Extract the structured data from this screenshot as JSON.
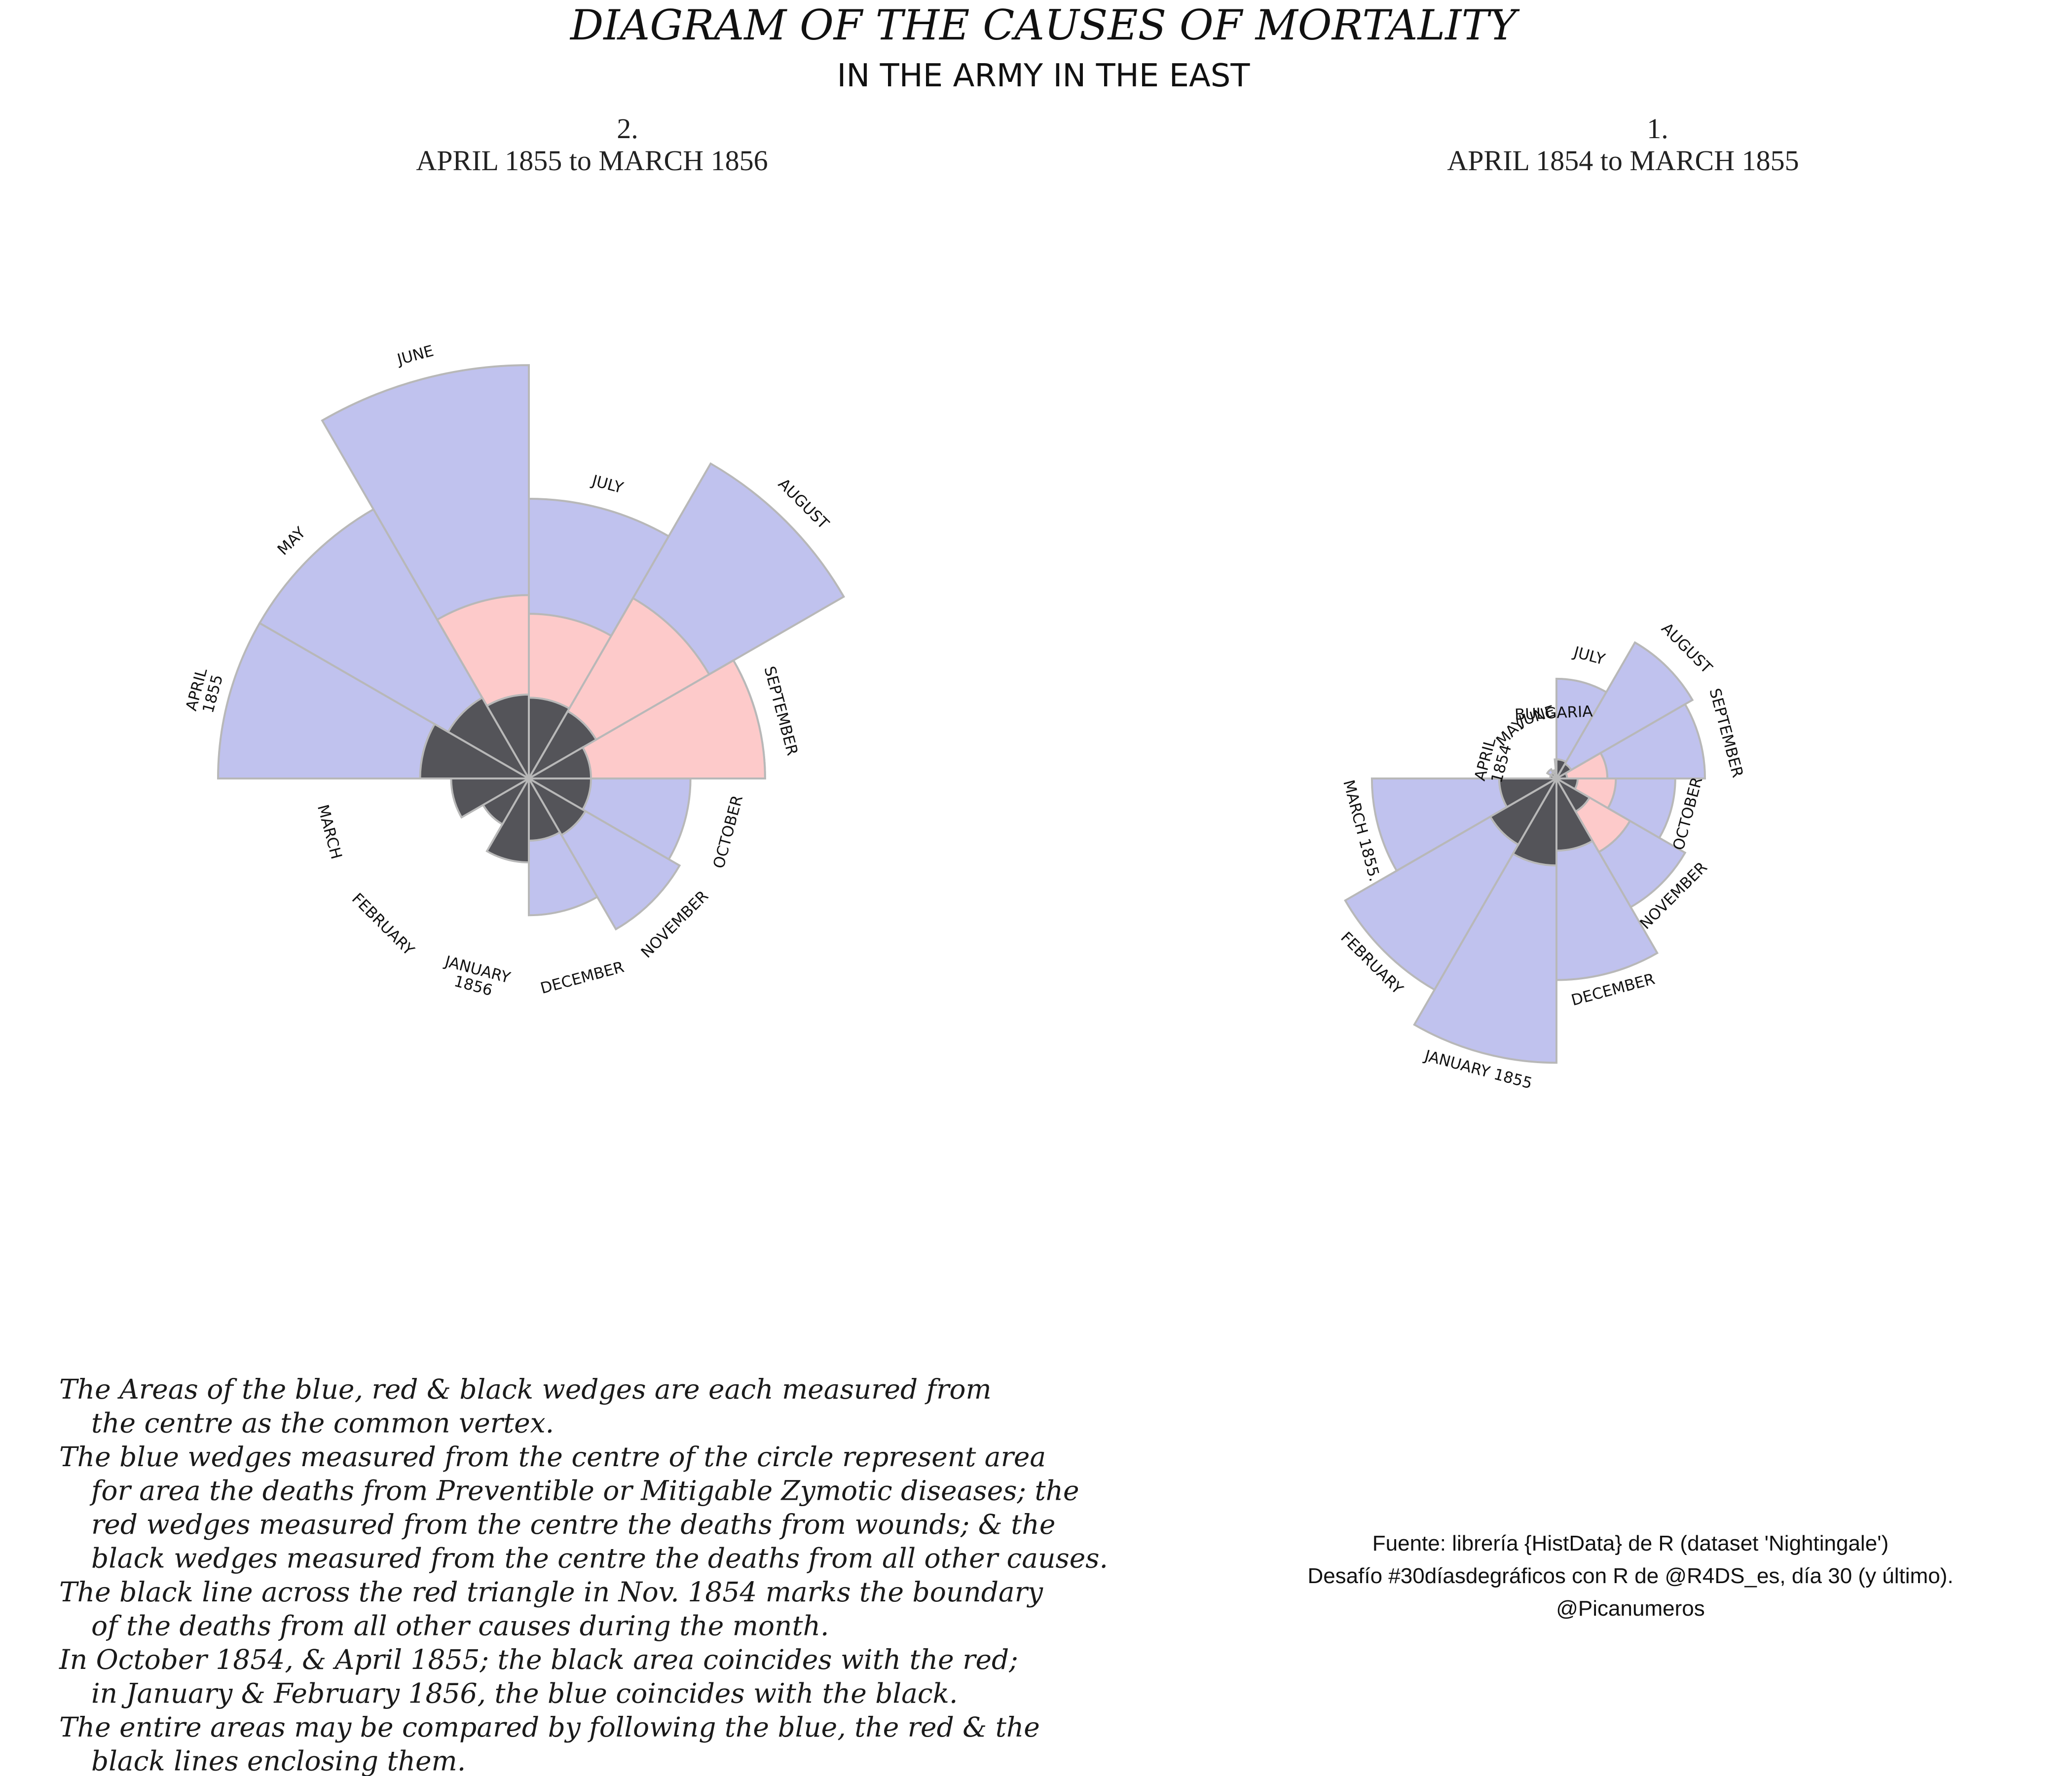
{
  "title": "DIAGRAM OF THE CAUSES OF MORTALITY",
  "subtitle": "IN THE ARMY IN THE EAST",
  "colors": {
    "zymotic": "#c0c2ee",
    "wounds": "#fdcaca",
    "other": "#545459",
    "wedge_stroke": "#b8b8b8",
    "boundary_line": "#333333"
  },
  "chart_data": [
    {
      "type": "polar-area",
      "panel_number": "2.",
      "period": "APRIL 1855 to MARCH 1856",
      "months": [
        {
          "label": "APRIL\n1855",
          "zymotic": 1.0,
          "wounds": 0.21,
          "other": 0.35
        },
        {
          "label": "MAY",
          "zymotic": 1.0,
          "wounds": 0.28,
          "other": 0.3
        },
        {
          "label": "JUNE",
          "zymotic": 1.33,
          "wounds": 0.59,
          "other": 0.27
        },
        {
          "label": "JULY",
          "zymotic": 0.9,
          "wounds": 0.53,
          "other": 0.26
        },
        {
          "label": "AUGUST",
          "zymotic": 1.17,
          "wounds": 0.67,
          "other": 0.25
        },
        {
          "label": "SEPTEMBER",
          "zymotic": 0.76,
          "wounds": 0.76,
          "other": 0.2
        },
        {
          "label": "OCTOBER",
          "zymotic": 0.52,
          "wounds": 0.19,
          "other": 0.2
        },
        {
          "label": "NOVEMBER",
          "zymotic": 0.56,
          "wounds": 0.1,
          "other": 0.21
        },
        {
          "label": "DECEMBER",
          "zymotic": 0.44,
          "wounds": 0.05,
          "other": 0.2
        },
        {
          "label": "JANUARY\n1856",
          "zymotic": 0.25,
          "wounds": 0.03,
          "other": 0.27
        },
        {
          "label": "FEBRUARY",
          "zymotic": 0.17,
          "wounds": 0.02,
          "other": 0.17
        },
        {
          "label": "MARCH",
          "zymotic": 0.14,
          "wounds": 0.01,
          "other": 0.25
        }
      ]
    },
    {
      "type": "polar-area",
      "panel_number": "1.",
      "period": "APRIL 1854 to MARCH 1855",
      "months": [
        {
          "label": "APRIL\n1854",
          "zymotic": 0.02,
          "wounds": 0.0,
          "other": 0.03
        },
        {
          "label": "MAY",
          "zymotic": 0.05,
          "wounds": 0.0,
          "other": 0.03
        },
        {
          "label": "JUNE",
          "zymotic": 0.04,
          "wounds": 0.0,
          "other": 0.03
        },
        {
          "label": "BULGARIA",
          "zymotic": 0.09,
          "wounds": 0.0,
          "other": 0.05
        },
        {
          "label": "JULY",
          "zymotic": 0.47,
          "wounds": 0.0,
          "other": 0.09
        },
        {
          "label": "AUGUST",
          "zymotic": 0.74,
          "wounds": 0.05,
          "other": 0.08
        },
        {
          "label": "SEPTEMBER",
          "zymotic": 0.7,
          "wounds": 0.24,
          "other": 0.05
        },
        {
          "label": "OCTOBER",
          "zymotic": 0.56,
          "wounds": 0.28,
          "other": 0.1
        },
        {
          "label": "NOVEMBER",
          "zymotic": 0.7,
          "wounds": 0.4,
          "other": 0.18
        },
        {
          "label": "DECEMBER",
          "zymotic": 0.95,
          "wounds": 0.23,
          "other": 0.34
        },
        {
          "label": "JANUARY 1855",
          "zymotic": 1.34,
          "wounds": 0.14,
          "other": 0.41
        },
        {
          "label": "FEBRUARY",
          "zymotic": 1.15,
          "wounds": 0.08,
          "other": 0.36
        },
        {
          "label": "MARCH 1855.",
          "zymotic": 0.87,
          "wounds": 0.06,
          "other": 0.27
        }
      ]
    }
  ],
  "notes": [
    "The Areas of the blue, red & black wedges are each measured from",
    "the centre as the common vertex.",
    "The blue wedges measured from the centre of the circle represent area",
    "for area the deaths from Preventible or Mitigable Zymotic diseases; the",
    "red wedges measured from the centre the deaths from wounds; & the",
    "black wedges measured from the centre the deaths from all other causes.",
    "The black line across the red triangle in Nov. 1854 marks the boundary",
    "of the deaths from all other causes during the month.",
    "In October 1854, & April 1855; the black area coincides with the red;",
    "in January & February 1856, the blue coincides with the black.",
    "The entire areas may be compared by following the blue, the red & the",
    "black lines enclosing them."
  ],
  "source_lines": [
    "Fuente: librería {HistData} de R (dataset 'Nightingale')",
    "Desafío #30díasdegráficos con R de @R4DS_es, día 30 (y último).",
    "@Picanumeros"
  ]
}
